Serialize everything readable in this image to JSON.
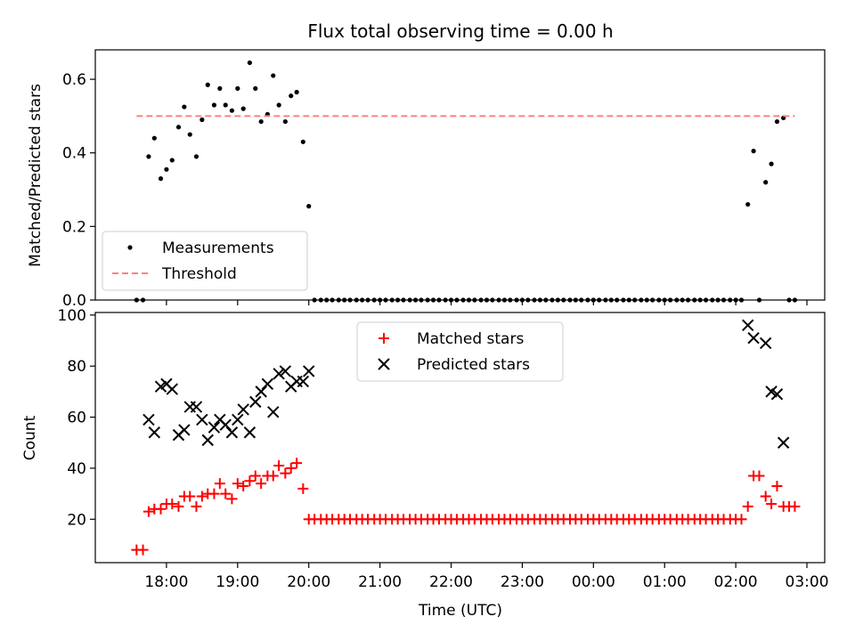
{
  "figure": {
    "title": "Flux total observing time = 0.00 h"
  },
  "chart_data": [
    {
      "type": "scatter",
      "panel": "top",
      "title": "Flux total observing time = 0.00 h",
      "ylabel": "Matched/Predicted stars",
      "xlabel": "",
      "ylim": [
        0,
        0.68
      ],
      "xlim": [
        17.0,
        27.25
      ],
      "yticks": [
        0.0,
        0.2,
        0.4,
        0.6
      ],
      "ytick_labels": [
        "0.0",
        "0.2",
        "0.4",
        "0.6"
      ],
      "xticks": [
        18,
        19,
        20,
        21,
        22,
        23,
        24,
        25,
        26,
        27
      ],
      "legend_position": "lower-left",
      "series": [
        {
          "name": "Measurements",
          "kind": "scatter",
          "color": "#000000",
          "x": [
            17.58,
            17.67,
            17.75,
            17.83,
            17.92,
            18.0,
            18.08,
            18.17,
            18.25,
            18.33,
            18.42,
            18.5,
            18.58,
            18.67,
            18.75,
            18.83,
            18.92,
            19.0,
            19.08,
            19.17,
            19.25,
            19.33,
            19.42,
            19.5,
            19.58,
            19.67,
            19.75,
            19.83,
            19.92,
            20.0,
            20.08,
            20.17,
            20.25,
            20.33,
            20.42,
            20.5,
            20.58,
            20.67,
            20.75,
            20.83,
            20.92,
            21.0,
            21.08,
            21.17,
            21.25,
            21.33,
            21.42,
            21.5,
            21.58,
            21.67,
            21.75,
            21.83,
            21.92,
            22.0,
            22.08,
            22.17,
            22.25,
            22.33,
            22.42,
            22.5,
            22.58,
            22.67,
            22.75,
            22.83,
            22.92,
            23.0,
            23.08,
            23.17,
            23.25,
            23.33,
            23.42,
            23.5,
            23.58,
            23.67,
            23.75,
            23.83,
            23.92,
            24.0,
            24.08,
            24.17,
            24.25,
            24.33,
            24.42,
            24.5,
            24.58,
            24.67,
            24.75,
            24.83,
            24.92,
            25.0,
            25.08,
            25.17,
            25.25,
            25.33,
            25.42,
            25.5,
            25.58,
            25.67,
            25.75,
            25.83,
            25.92,
            26.0,
            26.08,
            26.17,
            26.25,
            26.33,
            26.42,
            26.5,
            26.58,
            26.67,
            26.75,
            26.83
          ],
          "y": [
            0.0,
            0.0,
            0.39,
            0.44,
            0.33,
            0.355,
            0.38,
            0.47,
            0.525,
            0.45,
            0.39,
            0.49,
            0.585,
            0.53,
            0.575,
            0.53,
            0.515,
            0.575,
            0.52,
            0.645,
            0.575,
            0.485,
            0.505,
            0.61,
            0.53,
            0.485,
            0.555,
            0.565,
            0.43,
            0.255,
            0.0,
            0.0,
            0.0,
            0.0,
            0.0,
            0.0,
            0.0,
            0.0,
            0.0,
            0.0,
            0.0,
            0.0,
            0.0,
            0.0,
            0.0,
            0.0,
            0.0,
            0.0,
            0.0,
            0.0,
            0.0,
            0.0,
            0.0,
            0.0,
            0.0,
            0.0,
            0.0,
            0.0,
            0.0,
            0.0,
            0.0,
            0.0,
            0.0,
            0.0,
            0.0,
            0.0,
            0.0,
            0.0,
            0.0,
            0.0,
            0.0,
            0.0,
            0.0,
            0.0,
            0.0,
            0.0,
            0.0,
            0.0,
            0.0,
            0.0,
            0.0,
            0.0,
            0.0,
            0.0,
            0.0,
            0.0,
            0.0,
            0.0,
            0.0,
            0.0,
            0.0,
            0.0,
            0.0,
            0.0,
            0.0,
            0.0,
            0.0,
            0.0,
            0.0,
            0.0,
            0.0,
            0.0,
            0.0,
            0.26,
            0.405,
            0.0,
            0.32,
            0.37,
            0.485,
            0.495,
            0.0,
            0.0
          ]
        },
        {
          "name": "Threshold",
          "kind": "line",
          "style": "dashed",
          "color": "#ff7f7f",
          "x": [
            17.58,
            26.83
          ],
          "y": [
            0.5,
            0.5
          ]
        }
      ]
    },
    {
      "type": "scatter",
      "panel": "bottom",
      "ylabel": "Count",
      "xlabel": "Time (UTC)",
      "ylim": [
        3,
        101
      ],
      "xlim": [
        17.0,
        27.25
      ],
      "yticks": [
        20,
        40,
        60,
        80,
        100
      ],
      "ytick_labels": [
        "20",
        "40",
        "60",
        "80",
        "100"
      ],
      "xticks": [
        18,
        19,
        20,
        21,
        22,
        23,
        24,
        25,
        26,
        27
      ],
      "xtick_labels": [
        "18:00",
        "19:00",
        "20:00",
        "21:00",
        "22:00",
        "23:00",
        "00:00",
        "01:00",
        "02:00",
        "03:00"
      ],
      "legend_position": "upper-center",
      "series": [
        {
          "name": "Matched stars",
          "marker": "plus",
          "color": "#ff0000",
          "x": [
            17.58,
            17.67,
            17.75,
            17.83,
            17.92,
            18.0,
            18.08,
            18.17,
            18.25,
            18.33,
            18.42,
            18.5,
            18.58,
            18.67,
            18.75,
            18.83,
            18.92,
            19.0,
            19.08,
            19.17,
            19.25,
            19.33,
            19.42,
            19.5,
            19.58,
            19.67,
            19.75,
            19.83,
            19.92,
            20.0,
            20.08,
            20.17,
            20.25,
            20.33,
            20.42,
            20.5,
            20.58,
            20.67,
            20.75,
            20.83,
            20.92,
            21.0,
            21.08,
            21.17,
            21.25,
            21.33,
            21.42,
            21.5,
            21.58,
            21.67,
            21.75,
            21.83,
            21.92,
            22.0,
            22.08,
            22.17,
            22.25,
            22.33,
            22.42,
            22.5,
            22.58,
            22.67,
            22.75,
            22.83,
            22.92,
            23.0,
            23.08,
            23.17,
            23.25,
            23.33,
            23.42,
            23.5,
            23.58,
            23.67,
            23.75,
            23.83,
            23.92,
            24.0,
            24.08,
            24.17,
            24.25,
            24.33,
            24.42,
            24.5,
            24.58,
            24.67,
            24.75,
            24.83,
            24.92,
            25.0,
            25.08,
            25.17,
            25.25,
            25.33,
            25.42,
            25.5,
            25.58,
            25.67,
            25.75,
            25.83,
            25.92,
            26.0,
            26.08,
            26.17,
            26.25,
            26.33,
            26.42,
            26.5,
            26.58,
            26.67,
            26.75,
            26.83
          ],
          "y": [
            8,
            8,
            23,
            24,
            24,
            26,
            26,
            25,
            29,
            29,
            25,
            29,
            30,
            30,
            34,
            30,
            28,
            34,
            33,
            35,
            37,
            34,
            37,
            37,
            41,
            38,
            40,
            42,
            32,
            20,
            20,
            20,
            20,
            20,
            20,
            20,
            20,
            20,
            20,
            20,
            20,
            20,
            20,
            20,
            20,
            20,
            20,
            20,
            20,
            20,
            20,
            20,
            20,
            20,
            20,
            20,
            20,
            20,
            20,
            20,
            20,
            20,
            20,
            20,
            20,
            20,
            20,
            20,
            20,
            20,
            20,
            20,
            20,
            20,
            20,
            20,
            20,
            20,
            20,
            20,
            20,
            20,
            20,
            20,
            20,
            20,
            20,
            20,
            20,
            20,
            20,
            20,
            20,
            20,
            20,
            20,
            20,
            20,
            20,
            20,
            20,
            20,
            20,
            25,
            37,
            37,
            29,
            26,
            33,
            25,
            25,
            25
          ]
        },
        {
          "name": "Predicted stars",
          "marker": "x",
          "color": "#000000",
          "x": [
            17.75,
            17.83,
            17.92,
            18.0,
            18.08,
            18.17,
            18.25,
            18.33,
            18.42,
            18.5,
            18.58,
            18.67,
            18.75,
            18.83,
            18.92,
            19.0,
            19.08,
            19.17,
            19.25,
            19.33,
            19.42,
            19.5,
            19.58,
            19.67,
            19.75,
            19.83,
            19.92,
            20.0,
            26.17,
            26.25,
            26.42,
            26.5,
            26.58,
            26.67
          ],
          "y": [
            59,
            54,
            72,
            73,
            71,
            53,
            55,
            64,
            64,
            59,
            51,
            56,
            59,
            57,
            54,
            59,
            63,
            54,
            66,
            70,
            73,
            62,
            77,
            78,
            72,
            74,
            74,
            78,
            96,
            91,
            89,
            70,
            69,
            50
          ]
        }
      ]
    }
  ]
}
